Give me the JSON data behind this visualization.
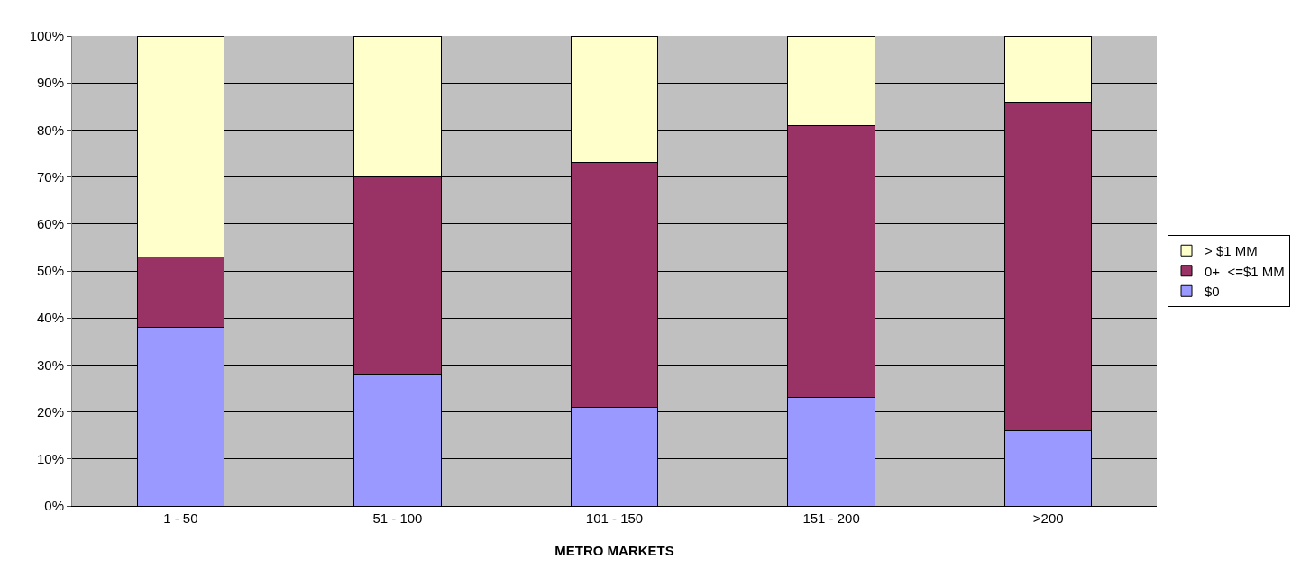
{
  "chart_data": {
    "type": "bar",
    "stacked": true,
    "xlabel": "METRO MARKETS",
    "categories": [
      "1 - 50",
      "51 - 100",
      "101 - 150",
      "151 - 200",
      ">200"
    ],
    "series": [
      {
        "name": "$0",
        "color": "#9999ff",
        "values": [
          38,
          28,
          21,
          23,
          16
        ]
      },
      {
        "name": "0+  <=$1 MM",
        "color": "#993366",
        "values": [
          15,
          42,
          52,
          58,
          70
        ]
      },
      {
        "name": "> $1 MM",
        "color": "#ffffcc",
        "values": [
          47,
          30,
          27,
          19,
          14
        ]
      }
    ],
    "ylim": [
      0,
      100
    ],
    "yticks": [
      {
        "value": 0,
        "label": "0%"
      },
      {
        "value": 10,
        "label": "10%"
      },
      {
        "value": 20,
        "label": "20%"
      },
      {
        "value": 30,
        "label": "30%"
      },
      {
        "value": 40,
        "label": "40%"
      },
      {
        "value": 50,
        "label": "50%"
      },
      {
        "value": 60,
        "label": "60%"
      },
      {
        "value": 70,
        "label": "70%"
      },
      {
        "value": 80,
        "label": "80%"
      },
      {
        "value": 90,
        "label": "90%"
      },
      {
        "value": 100,
        "label": "100%"
      }
    ],
    "grid": "y",
    "legend": "right"
  }
}
